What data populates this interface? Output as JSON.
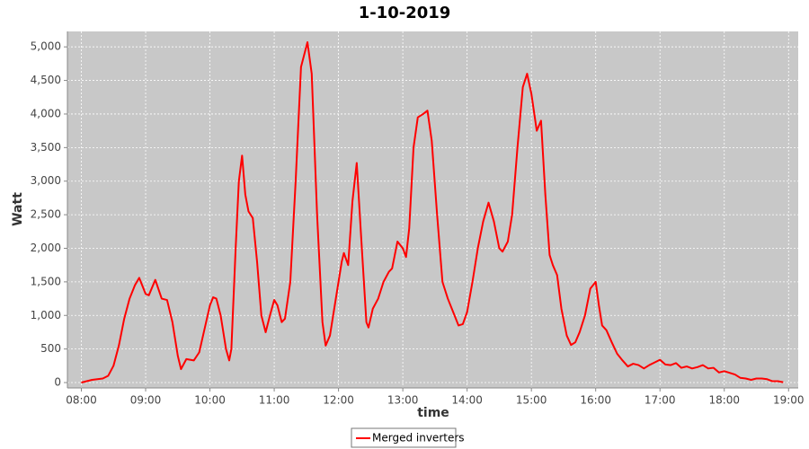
{
  "chart_data": {
    "type": "line",
    "title": "1-10-2019",
    "x_label": "time",
    "y_label": "Watt",
    "x": [
      "08:00",
      "08:10",
      "08:20",
      "08:25",
      "08:30",
      "08:35",
      "08:40",
      "08:45",
      "08:50",
      "08:54",
      "09:00",
      "09:03",
      "09:09",
      "09:15",
      "09:20",
      "09:25",
      "09:30",
      "09:33",
      "09:38",
      "09:45",
      "09:50",
      "09:55",
      "10:00",
      "10:03",
      "10:06",
      "10:10",
      "10:15",
      "10:18",
      "10:20",
      "10:24",
      "10:27",
      "10:30",
      "10:33",
      "10:36",
      "10:40",
      "10:44",
      "10:48",
      "10:52",
      "10:56",
      "11:00",
      "11:03",
      "11:07",
      "11:10",
      "11:15",
      "11:20",
      "11:25",
      "11:31",
      "11:35",
      "11:40",
      "11:45",
      "11:48",
      "11:52",
      "11:58",
      "12:03",
      "12:05",
      "12:09",
      "12:13",
      "12:17",
      "12:21",
      "12:26",
      "12:28",
      "12:32",
      "12:37",
      "12:42",
      "12:47",
      "12:50",
      "12:55",
      "13:00",
      "13:03",
      "13:06",
      "13:10",
      "13:14",
      "13:19",
      "13:23",
      "13:27",
      "13:32",
      "13:37",
      "13:42",
      "13:47",
      "13:52",
      "13:56",
      "14:00",
      "14:05",
      "14:10",
      "14:15",
      "14:20",
      "14:25",
      "14:30",
      "14:33",
      "14:38",
      "14:42",
      "14:47",
      "14:52",
      "14:56",
      "15:00",
      "15:05",
      "15:09",
      "15:13",
      "15:17",
      "15:20",
      "15:24",
      "15:28",
      "15:33",
      "15:37",
      "15:41",
      "15:45",
      "15:50",
      "15:55",
      "16:00",
      "16:03",
      "16:06",
      "16:10",
      "16:15",
      "16:20",
      "16:25",
      "16:30",
      "16:35",
      "16:40",
      "16:45",
      "16:50",
      "16:55",
      "17:00",
      "17:05",
      "17:10",
      "17:15",
      "17:20",
      "17:25",
      "17:30",
      "17:35",
      "17:40",
      "17:45",
      "17:50",
      "17:55",
      "18:00",
      "18:10",
      "18:15",
      "18:20",
      "18:25",
      "18:30",
      "18:35",
      "18:40",
      "18:45",
      "18:50",
      "18:55"
    ],
    "series": [
      {
        "name": "Merged inverters",
        "color": "#ff0000",
        "values": [
          0,
          40,
          60,
          100,
          250,
          550,
          950,
          1250,
          1450,
          1560,
          1320,
          1300,
          1530,
          1250,
          1230,
          900,
          400,
          200,
          350,
          330,
          450,
          800,
          1150,
          1270,
          1250,
          1000,
          500,
          330,
          500,
          2000,
          3000,
          3380,
          2800,
          2550,
          2450,
          1800,
          1000,
          750,
          1000,
          1230,
          1150,
          900,
          950,
          1500,
          3000,
          4700,
          5070,
          4600,
          2500,
          900,
          550,
          700,
          1300,
          1800,
          1930,
          1750,
          2700,
          3270,
          2200,
          900,
          820,
          1100,
          1250,
          1500,
          1650,
          1700,
          2100,
          2000,
          1870,
          2300,
          3500,
          3950,
          4000,
          4050,
          3600,
          2500,
          1500,
          1250,
          1050,
          850,
          870,
          1050,
          1500,
          2000,
          2400,
          2680,
          2400,
          2000,
          1950,
          2100,
          2500,
          3500,
          4400,
          4600,
          4300,
          3750,
          3900,
          2800,
          1900,
          1750,
          1600,
          1100,
          700,
          560,
          600,
          750,
          1000,
          1400,
          1500,
          1150,
          850,
          780,
          600,
          430,
          330,
          240,
          280,
          260,
          210,
          260,
          300,
          340,
          270,
          260,
          290,
          220,
          240,
          210,
          230,
          260,
          210,
          220,
          150,
          170,
          120,
          70,
          60,
          40,
          60,
          60,
          50,
          20,
          20,
          5
        ]
      }
    ],
    "xlim": [
      "07:47",
      "19:09"
    ],
    "xticks": [
      "08:00",
      "09:00",
      "10:00",
      "11:00",
      "12:00",
      "13:00",
      "14:00",
      "15:00",
      "16:00",
      "17:00",
      "18:00",
      "19:00"
    ],
    "ylim": [
      -80,
      5230
    ],
    "yticks": [
      0,
      500,
      {
        "value": 1000,
        "label": "1,000"
      },
      {
        "value": 1500,
        "label": "1,500"
      },
      {
        "value": 2000,
        "label": "2,000"
      },
      {
        "value": 2500,
        "label": "2,500"
      },
      {
        "value": 3000,
        "label": "3,000"
      },
      {
        "value": 3500,
        "label": "3,500"
      },
      {
        "value": 4000,
        "label": "4,000"
      },
      {
        "value": 4500,
        "label": "4,500"
      },
      {
        "value": 5000,
        "label": "5,000"
      }
    ],
    "grid": true,
    "legend": "bottom"
  }
}
